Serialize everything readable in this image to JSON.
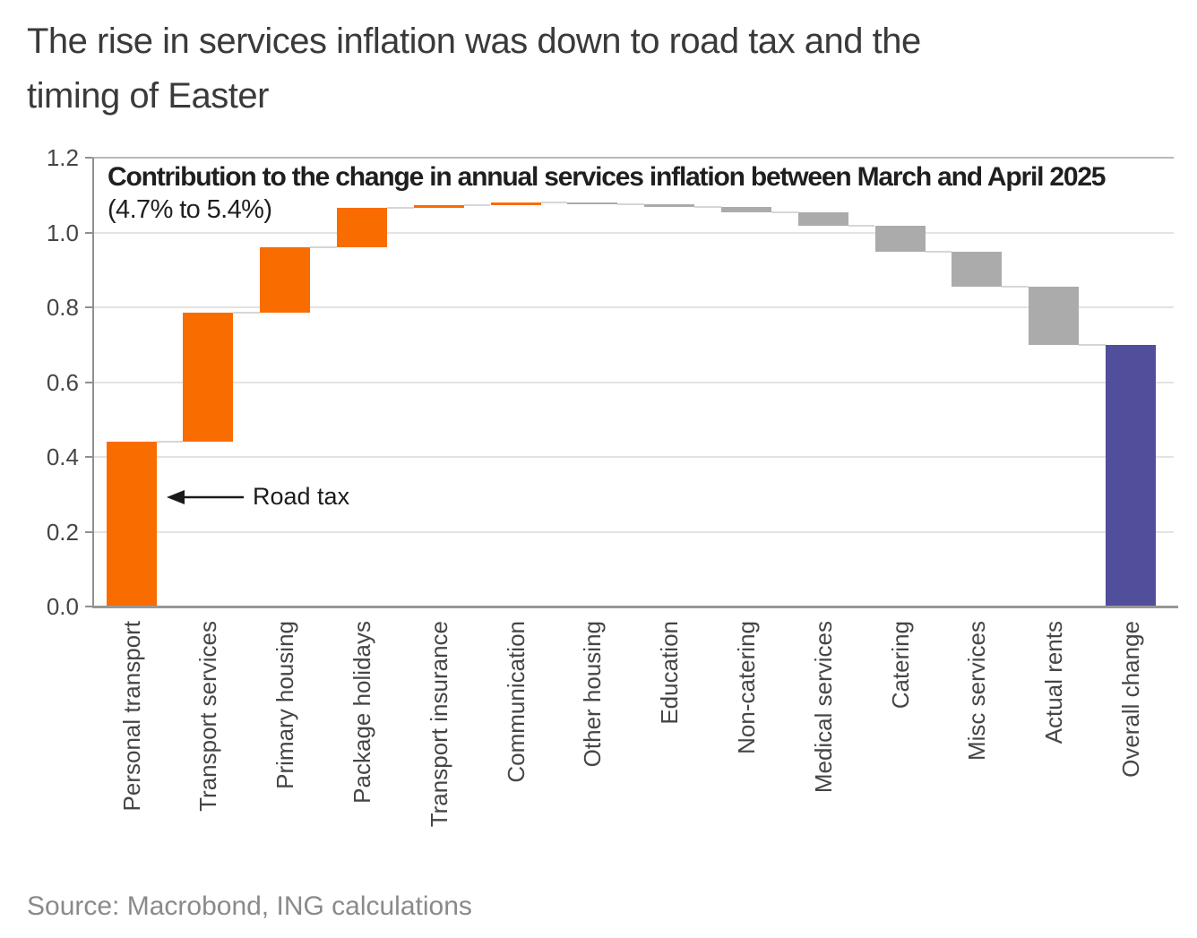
{
  "header": {
    "title_line1": "The rise in services inflation was down to road tax and the",
    "title_line2": "timing of Easter"
  },
  "footer": {
    "source": "Source: Macrobond, ING calculations"
  },
  "chart_data": {
    "type": "bar",
    "variant": "waterfall",
    "title": "Contribution to the change in annual services inflation between March and April 2025",
    "subtitle": "(4.7% to 5.4%)",
    "xlabel": "",
    "ylabel": "",
    "ylim": [
      0,
      1.2
    ],
    "yticks": [
      0.0,
      0.2,
      0.4,
      0.6,
      0.8,
      1.0,
      1.2
    ],
    "grid": true,
    "legend": "none",
    "annotation": {
      "text": "Road tax",
      "category": "Personal transport",
      "points_to_value": 0.29
    },
    "colors": {
      "increase": "#f96c00",
      "decrease": "#ababab",
      "total": "#514f9b"
    },
    "categories": [
      "Personal transport",
      "Transport services",
      "Primary housing",
      "Package holidays",
      "Transport insurance",
      "Communication",
      "Other housing",
      "Education",
      "Non-catering",
      "Medical services",
      "Catering",
      "Misc services",
      "Actual rents",
      "Overall change"
    ],
    "bars": [
      {
        "label": "Personal transport",
        "start": 0,
        "end": 0.44,
        "change": 0.44,
        "role": "increase"
      },
      {
        "label": "Transport services",
        "start": 0.44,
        "end": 0.785,
        "change": 0.345,
        "role": "increase"
      },
      {
        "label": "Primary housing",
        "start": 0.785,
        "end": 0.96,
        "change": 0.175,
        "role": "increase"
      },
      {
        "label": "Package holidays",
        "start": 0.96,
        "end": 1.065,
        "change": 0.105,
        "role": "increase"
      },
      {
        "label": "Transport insurance",
        "start": 1.065,
        "end": 1.073,
        "change": 0.008,
        "role": "increase"
      },
      {
        "label": "Communication",
        "start": 1.073,
        "end": 1.08,
        "change": 0.007,
        "role": "increase"
      },
      {
        "label": "Other housing",
        "start": 1.08,
        "end": 1.075,
        "change": -0.005,
        "role": "decrease"
      },
      {
        "label": "Education",
        "start": 1.075,
        "end": 1.068,
        "change": -0.007,
        "role": "decrease"
      },
      {
        "label": "Non-catering",
        "start": 1.068,
        "end": 1.053,
        "change": -0.015,
        "role": "decrease"
      },
      {
        "label": "Medical services",
        "start": 1.053,
        "end": 1.018,
        "change": -0.035,
        "role": "decrease"
      },
      {
        "label": "Catering",
        "start": 1.018,
        "end": 0.948,
        "change": -0.07,
        "role": "decrease"
      },
      {
        "label": "Misc services",
        "start": 0.948,
        "end": 0.855,
        "change": -0.093,
        "role": "decrease"
      },
      {
        "label": "Actual rents",
        "start": 0.855,
        "end": 0.7,
        "change": -0.155,
        "role": "decrease"
      },
      {
        "label": "Overall change",
        "start": 0,
        "end": 0.7,
        "change": 0.7,
        "role": "total"
      }
    ]
  }
}
